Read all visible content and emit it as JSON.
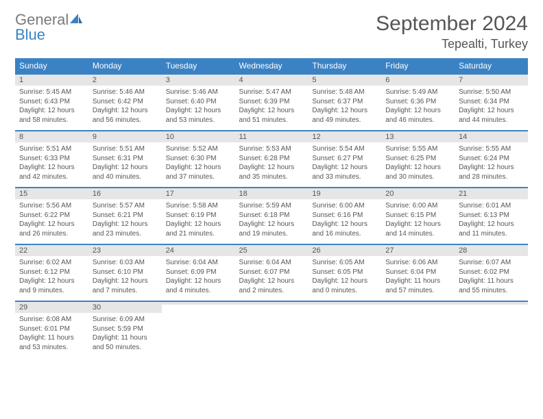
{
  "brand": {
    "word1": "General",
    "word2": "Blue",
    "logo_color_primary": "#3b82c4",
    "logo_color_secondary": "#7a7a7a"
  },
  "title": "September 2024",
  "location": "Tepealti, Turkey",
  "colors": {
    "header_bg": "#3b82c4",
    "header_text": "#ffffff",
    "daynum_bg": "#e6e6e6",
    "text": "#555555",
    "rule": "#3b82c4",
    "page_bg": "#ffffff"
  },
  "typography": {
    "title_fontsize": 30,
    "location_fontsize": 18,
    "dayhead_fontsize": 12,
    "daynum_fontsize": 11,
    "body_fontsize": 10
  },
  "day_headers": [
    "Sunday",
    "Monday",
    "Tuesday",
    "Wednesday",
    "Thursday",
    "Friday",
    "Saturday"
  ],
  "weeks": [
    [
      {
        "n": "1",
        "sr": "Sunrise: 5:45 AM",
        "ss": "Sunset: 6:43 PM",
        "dl": "Daylight: 12 hours and 58 minutes."
      },
      {
        "n": "2",
        "sr": "Sunrise: 5:46 AM",
        "ss": "Sunset: 6:42 PM",
        "dl": "Daylight: 12 hours and 56 minutes."
      },
      {
        "n": "3",
        "sr": "Sunrise: 5:46 AM",
        "ss": "Sunset: 6:40 PM",
        "dl": "Daylight: 12 hours and 53 minutes."
      },
      {
        "n": "4",
        "sr": "Sunrise: 5:47 AM",
        "ss": "Sunset: 6:39 PM",
        "dl": "Daylight: 12 hours and 51 minutes."
      },
      {
        "n": "5",
        "sr": "Sunrise: 5:48 AM",
        "ss": "Sunset: 6:37 PM",
        "dl": "Daylight: 12 hours and 49 minutes."
      },
      {
        "n": "6",
        "sr": "Sunrise: 5:49 AM",
        "ss": "Sunset: 6:36 PM",
        "dl": "Daylight: 12 hours and 46 minutes."
      },
      {
        "n": "7",
        "sr": "Sunrise: 5:50 AM",
        "ss": "Sunset: 6:34 PM",
        "dl": "Daylight: 12 hours and 44 minutes."
      }
    ],
    [
      {
        "n": "8",
        "sr": "Sunrise: 5:51 AM",
        "ss": "Sunset: 6:33 PM",
        "dl": "Daylight: 12 hours and 42 minutes."
      },
      {
        "n": "9",
        "sr": "Sunrise: 5:51 AM",
        "ss": "Sunset: 6:31 PM",
        "dl": "Daylight: 12 hours and 40 minutes."
      },
      {
        "n": "10",
        "sr": "Sunrise: 5:52 AM",
        "ss": "Sunset: 6:30 PM",
        "dl": "Daylight: 12 hours and 37 minutes."
      },
      {
        "n": "11",
        "sr": "Sunrise: 5:53 AM",
        "ss": "Sunset: 6:28 PM",
        "dl": "Daylight: 12 hours and 35 minutes."
      },
      {
        "n": "12",
        "sr": "Sunrise: 5:54 AM",
        "ss": "Sunset: 6:27 PM",
        "dl": "Daylight: 12 hours and 33 minutes."
      },
      {
        "n": "13",
        "sr": "Sunrise: 5:55 AM",
        "ss": "Sunset: 6:25 PM",
        "dl": "Daylight: 12 hours and 30 minutes."
      },
      {
        "n": "14",
        "sr": "Sunrise: 5:55 AM",
        "ss": "Sunset: 6:24 PM",
        "dl": "Daylight: 12 hours and 28 minutes."
      }
    ],
    [
      {
        "n": "15",
        "sr": "Sunrise: 5:56 AM",
        "ss": "Sunset: 6:22 PM",
        "dl": "Daylight: 12 hours and 26 minutes."
      },
      {
        "n": "16",
        "sr": "Sunrise: 5:57 AM",
        "ss": "Sunset: 6:21 PM",
        "dl": "Daylight: 12 hours and 23 minutes."
      },
      {
        "n": "17",
        "sr": "Sunrise: 5:58 AM",
        "ss": "Sunset: 6:19 PM",
        "dl": "Daylight: 12 hours and 21 minutes."
      },
      {
        "n": "18",
        "sr": "Sunrise: 5:59 AM",
        "ss": "Sunset: 6:18 PM",
        "dl": "Daylight: 12 hours and 19 minutes."
      },
      {
        "n": "19",
        "sr": "Sunrise: 6:00 AM",
        "ss": "Sunset: 6:16 PM",
        "dl": "Daylight: 12 hours and 16 minutes."
      },
      {
        "n": "20",
        "sr": "Sunrise: 6:00 AM",
        "ss": "Sunset: 6:15 PM",
        "dl": "Daylight: 12 hours and 14 minutes."
      },
      {
        "n": "21",
        "sr": "Sunrise: 6:01 AM",
        "ss": "Sunset: 6:13 PM",
        "dl": "Daylight: 12 hours and 11 minutes."
      }
    ],
    [
      {
        "n": "22",
        "sr": "Sunrise: 6:02 AM",
        "ss": "Sunset: 6:12 PM",
        "dl": "Daylight: 12 hours and 9 minutes."
      },
      {
        "n": "23",
        "sr": "Sunrise: 6:03 AM",
        "ss": "Sunset: 6:10 PM",
        "dl": "Daylight: 12 hours and 7 minutes."
      },
      {
        "n": "24",
        "sr": "Sunrise: 6:04 AM",
        "ss": "Sunset: 6:09 PM",
        "dl": "Daylight: 12 hours and 4 minutes."
      },
      {
        "n": "25",
        "sr": "Sunrise: 6:04 AM",
        "ss": "Sunset: 6:07 PM",
        "dl": "Daylight: 12 hours and 2 minutes."
      },
      {
        "n": "26",
        "sr": "Sunrise: 6:05 AM",
        "ss": "Sunset: 6:05 PM",
        "dl": "Daylight: 12 hours and 0 minutes."
      },
      {
        "n": "27",
        "sr": "Sunrise: 6:06 AM",
        "ss": "Sunset: 6:04 PM",
        "dl": "Daylight: 11 hours and 57 minutes."
      },
      {
        "n": "28",
        "sr": "Sunrise: 6:07 AM",
        "ss": "Sunset: 6:02 PM",
        "dl": "Daylight: 11 hours and 55 minutes."
      }
    ],
    [
      {
        "n": "29",
        "sr": "Sunrise: 6:08 AM",
        "ss": "Sunset: 6:01 PM",
        "dl": "Daylight: 11 hours and 53 minutes."
      },
      {
        "n": "30",
        "sr": "Sunrise: 6:09 AM",
        "ss": "Sunset: 5:59 PM",
        "dl": "Daylight: 11 hours and 50 minutes."
      },
      {
        "n": "",
        "sr": "",
        "ss": "",
        "dl": ""
      },
      {
        "n": "",
        "sr": "",
        "ss": "",
        "dl": ""
      },
      {
        "n": "",
        "sr": "",
        "ss": "",
        "dl": ""
      },
      {
        "n": "",
        "sr": "",
        "ss": "",
        "dl": ""
      },
      {
        "n": "",
        "sr": "",
        "ss": "",
        "dl": ""
      }
    ]
  ]
}
